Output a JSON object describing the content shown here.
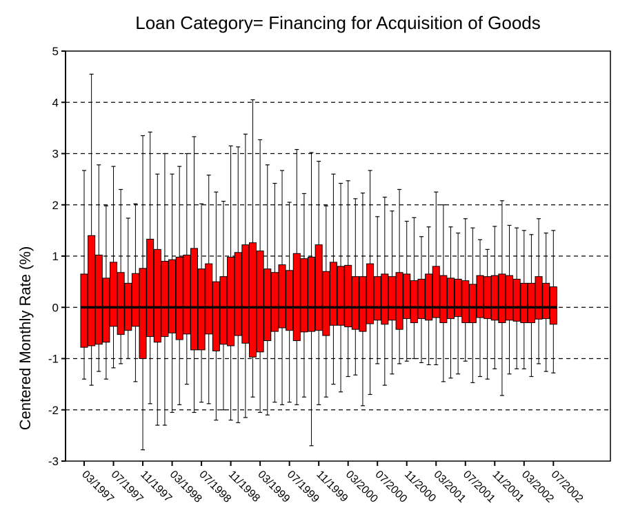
{
  "chart_data": {
    "type": "boxplot",
    "title": "Loan Category= Financing for Acquisition of Goods",
    "y_label": "Centered Monthly Rate (%)",
    "color": "#ff0000",
    "grid": true,
    "ylim": [
      -3,
      5
    ],
    "yticks": [
      -3,
      -2,
      -1,
      0,
      1,
      2,
      3,
      4,
      5
    ],
    "categories": [
      "03/1997",
      null,
      null,
      null,
      "07/1997",
      null,
      null,
      null,
      "11/1997",
      null,
      null,
      null,
      "03/1998",
      null,
      null,
      null,
      "07/1998",
      null,
      null,
      null,
      "11/1998",
      null,
      null,
      null,
      "03/1999",
      null,
      null,
      null,
      "07/1999",
      null,
      null,
      null,
      "11/1999",
      null,
      null,
      null,
      "03/2000",
      null,
      null,
      null,
      "07/2000",
      null,
      null,
      null,
      "11/2000",
      null,
      null,
      null,
      "03/2001",
      null,
      null,
      null,
      "07/2001",
      null,
      null,
      null,
      "11/2001",
      null,
      null,
      null,
      "03/2002",
      null,
      null,
      null,
      "07/2002"
    ],
    "whisker_high": [
      2.67,
      4.55,
      2.78,
      1.98,
      2.75,
      2.3,
      1.74,
      2.02,
      3.35,
      3.42,
      2.6,
      3.0,
      2.6,
      2.75,
      3.0,
      3.33,
      2.02,
      2.58,
      2.25,
      2.07,
      3.15,
      3.13,
      3.38,
      4.05,
      3.27,
      2.78,
      2.42,
      2.67,
      2.05,
      3.08,
      2.22,
      3.02,
      2.85,
      1.98,
      2.6,
      2.42,
      2.47,
      2.12,
      2.23,
      2.67,
      1.77,
      2.15,
      1.88,
      2.3,
      1.68,
      1.75,
      1.38,
      1.57,
      2.25,
      2.0,
      1.57,
      1.45,
      1.73,
      1.55,
      1.32,
      1.13,
      1.58,
      2.08,
      1.6,
      1.55,
      1.5,
      1.42,
      1.73,
      1.45,
      1.5
    ],
    "q3": [
      0.65,
      1.4,
      1.02,
      0.57,
      0.88,
      0.68,
      0.47,
      0.66,
      0.76,
      1.33,
      1.13,
      0.9,
      0.93,
      0.98,
      1.02,
      1.15,
      0.75,
      0.85,
      0.5,
      0.6,
      0.98,
      1.07,
      1.22,
      1.26,
      1.1,
      0.75,
      0.68,
      0.83,
      0.72,
      1.05,
      0.95,
      0.98,
      1.22,
      0.7,
      0.88,
      0.8,
      0.82,
      0.6,
      0.6,
      0.85,
      0.6,
      0.65,
      0.6,
      0.68,
      0.65,
      0.52,
      0.55,
      0.65,
      0.8,
      0.62,
      0.57,
      0.55,
      0.52,
      0.45,
      0.62,
      0.6,
      0.62,
      0.65,
      0.62,
      0.55,
      0.47,
      0.47,
      0.6,
      0.47,
      0.4
    ],
    "median": [
      0,
      0,
      0,
      0,
      0,
      0,
      0,
      0,
      0,
      0,
      0,
      0,
      0,
      0,
      0,
      0,
      0,
      0,
      0,
      0,
      0,
      0,
      0,
      0,
      0,
      0,
      0,
      0,
      0,
      0,
      0,
      0,
      0,
      0,
      0,
      0,
      0,
      0,
      0,
      0,
      0,
      0,
      0,
      0,
      0,
      0,
      0,
      0,
      0,
      0,
      0,
      0,
      0,
      0,
      0,
      0,
      0,
      0,
      0,
      0,
      0,
      0,
      0,
      0,
      0
    ],
    "q1": [
      -0.78,
      -0.75,
      -0.72,
      -0.68,
      -0.37,
      -0.53,
      -0.45,
      -0.37,
      -1.0,
      -0.57,
      -0.68,
      -0.57,
      -0.5,
      -0.63,
      -0.52,
      -0.83,
      -0.83,
      -0.52,
      -0.85,
      -0.72,
      -0.75,
      -0.55,
      -0.7,
      -0.97,
      -0.87,
      -0.65,
      -0.47,
      -0.4,
      -0.45,
      -0.65,
      -0.48,
      -0.47,
      -0.45,
      -0.55,
      -0.35,
      -0.35,
      -0.38,
      -0.43,
      -0.47,
      -0.32,
      -0.25,
      -0.33,
      -0.25,
      -0.43,
      -0.22,
      -0.3,
      -0.22,
      -0.25,
      -0.2,
      -0.3,
      -0.22,
      -0.18,
      -0.3,
      -0.3,
      -0.2,
      -0.22,
      -0.25,
      -0.3,
      -0.25,
      -0.27,
      -0.3,
      -0.3,
      -0.23,
      -0.22,
      -0.33
    ],
    "whisker_low": [
      -1.4,
      -1.52,
      -1.25,
      -1.4,
      -1.18,
      -1.1,
      -1.0,
      -1.45,
      -2.78,
      -1.88,
      -2.3,
      -2.3,
      -2.05,
      -1.9,
      -1.5,
      -2.05,
      -1.85,
      -1.88,
      -2.2,
      -2.0,
      -2.2,
      -2.25,
      -2.15,
      -1.75,
      -2.05,
      -2.1,
      -1.85,
      -1.9,
      -1.85,
      -1.9,
      -1.75,
      -2.7,
      -1.9,
      -1.75,
      -1.5,
      -1.65,
      -1.35,
      -1.32,
      -1.92,
      -1.7,
      -1.1,
      -1.52,
      -1.3,
      -1.1,
      -1.05,
      -1.0,
      -1.08,
      -1.12,
      -1.12,
      -1.45,
      -1.38,
      -1.3,
      -1.05,
      -1.47,
      -1.35,
      -1.4,
      -1.2,
      -1.72,
      -1.3,
      -1.2,
      -1.2,
      -1.35,
      -1.1,
      -1.25,
      -1.28
    ]
  }
}
